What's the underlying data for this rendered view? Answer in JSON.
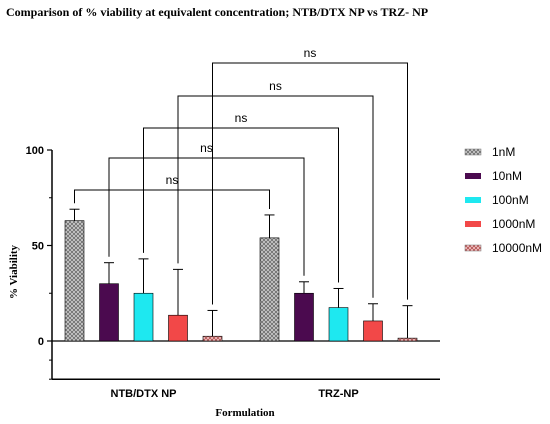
{
  "chart_data": {
    "type": "bar",
    "title": "Comparison of % viability at equivalent concentration; NTB/DTX NP vs TRZ- NP",
    "xlabel": "Formulation",
    "ylabel": "% Viability",
    "ylim": [
      -20,
      100
    ],
    "yticks": [
      0,
      50,
      100
    ],
    "categories": [
      "NTB/DTX NP",
      "TRZ-NP"
    ],
    "legend_position": "right",
    "series": [
      {
        "name": "1nM",
        "color": "#a8a8a8",
        "pattern": "crosshatch",
        "values": [
          63,
          54
        ],
        "errors": [
          6,
          12
        ]
      },
      {
        "name": "10nM",
        "color": "#4b0a4f",
        "pattern": "solid",
        "values": [
          30,
          25
        ],
        "errors": [
          11,
          6
        ]
      },
      {
        "name": "100nM",
        "color": "#1ee8f0",
        "pattern": "solid",
        "values": [
          25,
          17.5
        ],
        "errors": [
          18,
          10
        ]
      },
      {
        "name": "1000nM",
        "color": "#f24848",
        "pattern": "solid",
        "values": [
          13.5,
          10.5
        ],
        "errors": [
          24,
          9
        ]
      },
      {
        "name": "10000nM",
        "color": "#e8a0a0",
        "pattern": "crosshatch",
        "values": [
          2.5,
          1.5
        ],
        "errors": [
          13.5,
          17
        ]
      }
    ],
    "comparisons": [
      {
        "label": "ns",
        "from": [
          0,
          0
        ],
        "to": [
          1,
          0
        ]
      },
      {
        "label": "ns",
        "from": [
          0,
          1
        ],
        "to": [
          1,
          1
        ]
      },
      {
        "label": "ns",
        "from": [
          0,
          2
        ],
        "to": [
          1,
          2
        ]
      },
      {
        "label": "ns",
        "from": [
          0,
          3
        ],
        "to": [
          1,
          3
        ]
      },
      {
        "label": "ns",
        "from": [
          0,
          4
        ],
        "to": [
          1,
          4
        ]
      }
    ]
  }
}
